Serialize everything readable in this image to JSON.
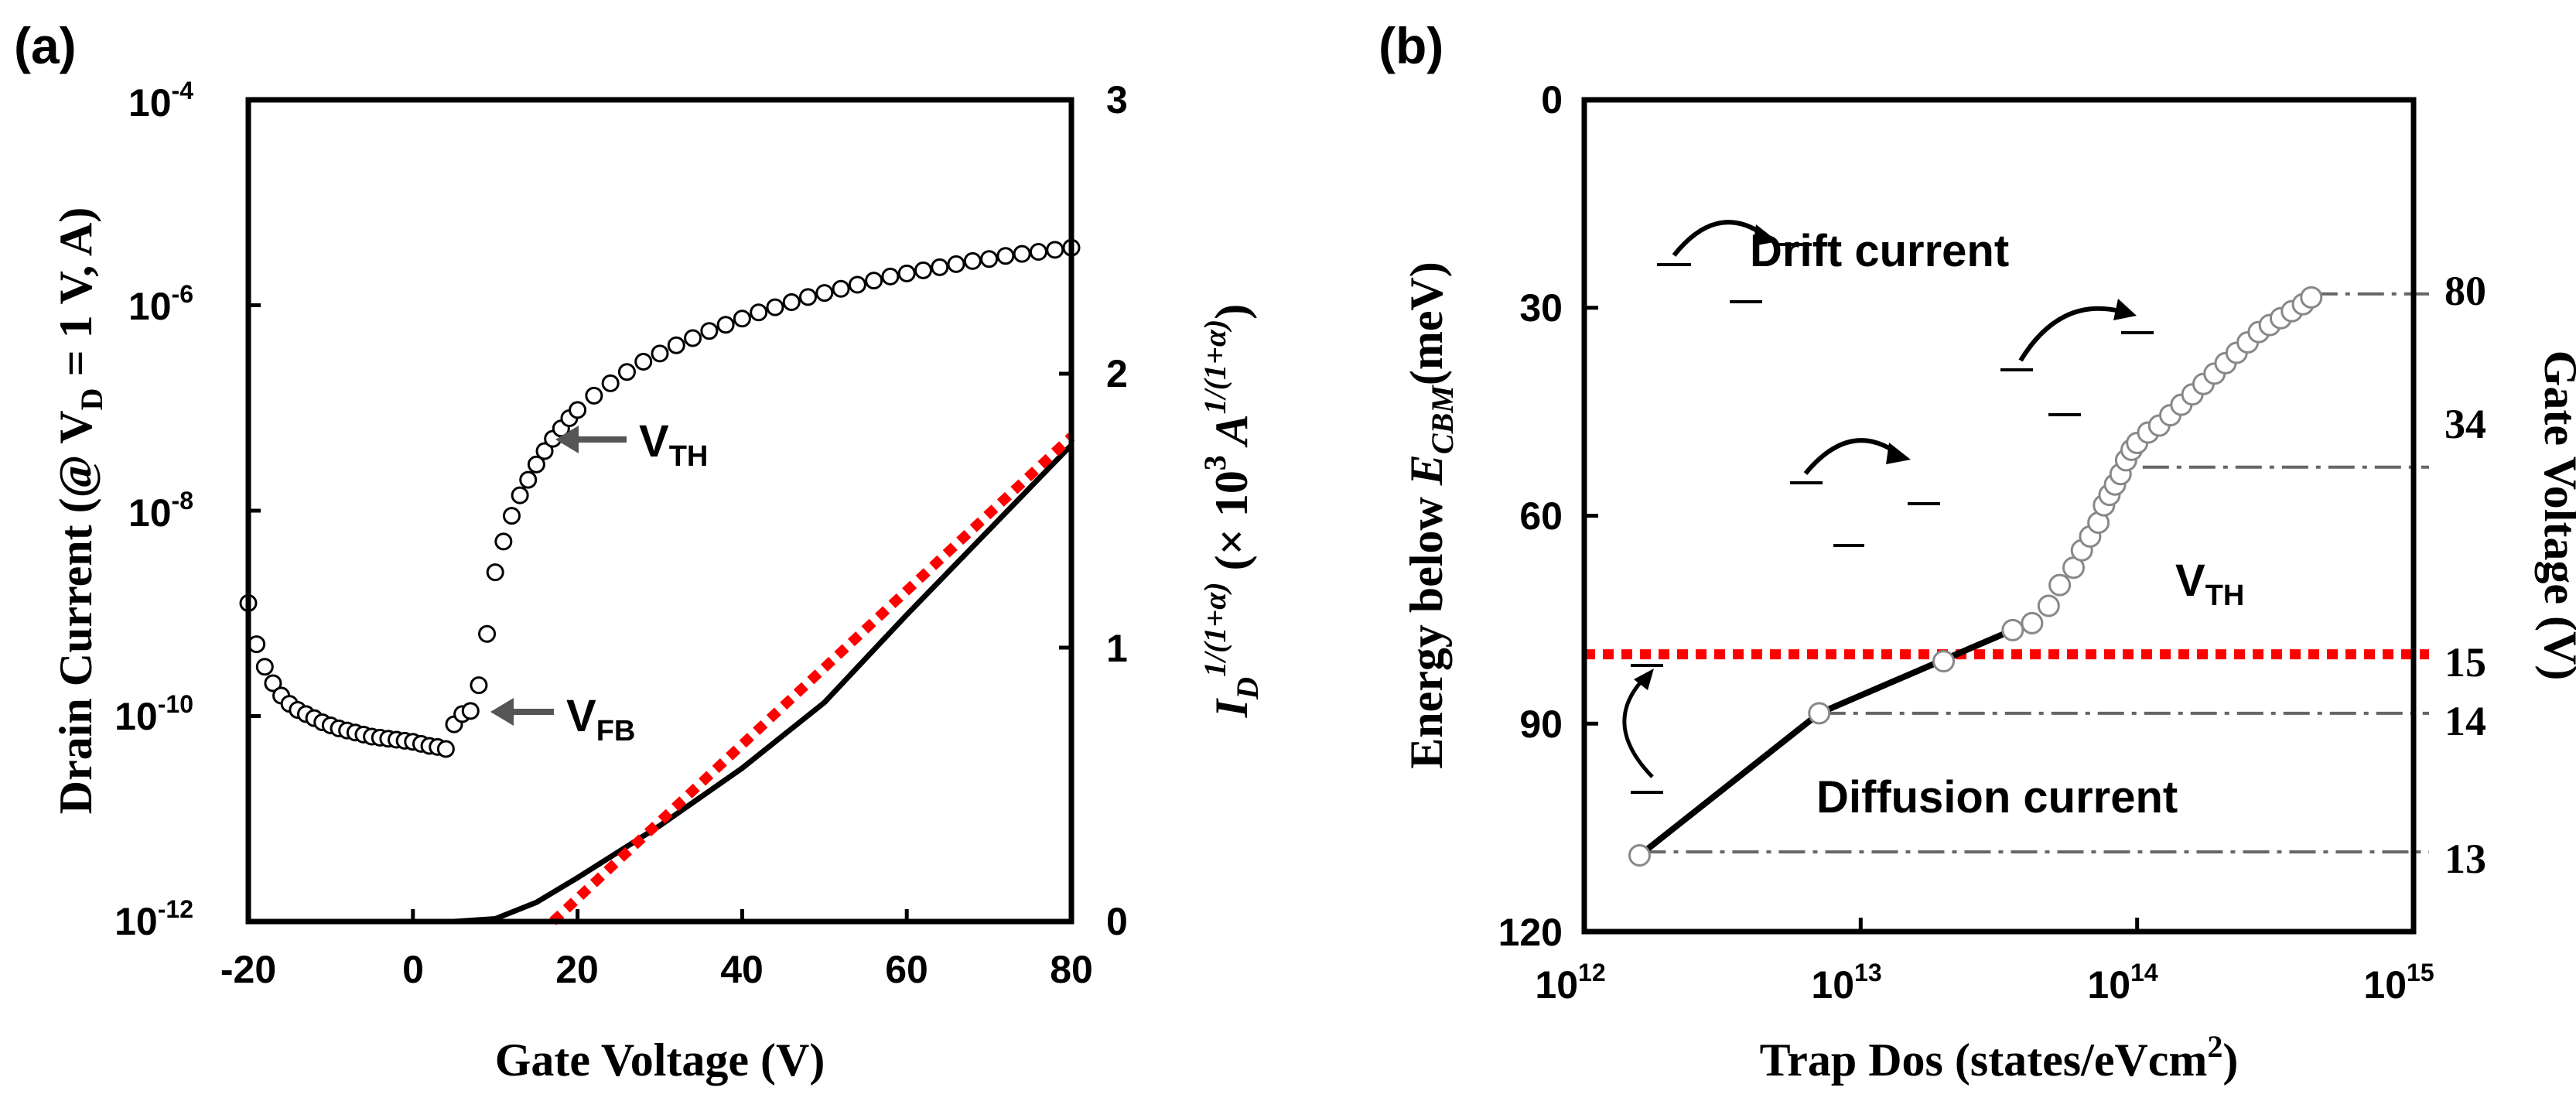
{
  "chart_data": [
    {
      "panel": "(a)",
      "type": "scatter",
      "xlabel": "Gate Voltage (V)",
      "ylabel_left": "Drain Current (@ V",
      "ylabel_left_sub": "D",
      "ylabel_left_tail": " = 1 V, A)",
      "ylabel_right_base": "I",
      "ylabel_right_sub": "D",
      "ylabel_right_sup": "1/(1+α)",
      "ylabel_right_mid": " (× 10",
      "ylabel_right_mid_sup": "3",
      "ylabel_right_tail": " A",
      "ylabel_right_tail_sup": "1/(1+α)",
      "ylabel_right_close": ")",
      "xlim": [
        -20,
        80
      ],
      "ylim_left": [
        -12,
        -4
      ],
      "ylim_right": [
        0,
        3
      ],
      "x_ticks": [
        "-20",
        "0",
        "20",
        "40",
        "60",
        "80"
      ],
      "y_left_ticks": [
        {
          "base": "10",
          "exp": "-4"
        },
        {
          "base": "10",
          "exp": "-6"
        },
        {
          "base": "10",
          "exp": "-8"
        },
        {
          "base": "10",
          "exp": "-10"
        },
        {
          "base": "10",
          "exp": "-12"
        }
      ],
      "y_right_ticks": [
        "3",
        "2",
        "1",
        "0"
      ],
      "series": [
        {
          "name": "Drain current (log scale, open circles)",
          "x": [
            -20,
            -19,
            -18,
            -17,
            -16,
            -15,
            -14,
            -13,
            -12,
            -11,
            -10,
            -9,
            -8,
            -7,
            -6,
            -5,
            -4,
            -3,
            -2,
            -1,
            0,
            1,
            2,
            3,
            4,
            5,
            6,
            7,
            8,
            9,
            10,
            11,
            12,
            13,
            14,
            15,
            16,
            17,
            18,
            19,
            20,
            22,
            24,
            26,
            28,
            30,
            32,
            34,
            36,
            38,
            40,
            42,
            44,
            46,
            48,
            50,
            52,
            54,
            56,
            58,
            60,
            62,
            64,
            66,
            68,
            70,
            72,
            74,
            76,
            78,
            80
          ],
          "log10_y": [
            -8.9,
            -9.3,
            -9.52,
            -9.68,
            -9.8,
            -9.88,
            -9.94,
            -9.98,
            -10.02,
            -10.06,
            -10.09,
            -10.12,
            -10.14,
            -10.16,
            -10.18,
            -10.2,
            -10.21,
            -10.22,
            -10.23,
            -10.24,
            -10.25,
            -10.27,
            -10.29,
            -10.3,
            -10.32,
            -10.08,
            -9.98,
            -9.95,
            -9.7,
            -9.2,
            -8.6,
            -8.3,
            -8.05,
            -7.85,
            -7.7,
            -7.55,
            -7.42,
            -7.3,
            -7.2,
            -7.1,
            -7.02,
            -6.88,
            -6.76,
            -6.65,
            -6.55,
            -6.47,
            -6.39,
            -6.32,
            -6.25,
            -6.19,
            -6.13,
            -6.07,
            -6.02,
            -5.97,
            -5.92,
            -5.88,
            -5.84,
            -5.8,
            -5.76,
            -5.72,
            -5.69,
            -5.66,
            -5.63,
            -5.6,
            -5.57,
            -5.55,
            -5.52,
            -5.5,
            -5.48,
            -5.46,
            -5.44
          ]
        },
        {
          "name": "I_D^(1/(1+α)) (right axis, black line)",
          "x": [
            -20,
            -10,
            0,
            5,
            10,
            15,
            20,
            30,
            40,
            50,
            60,
            70,
            80
          ],
          "y": [
            0,
            0,
            0,
            0,
            0.01,
            0.07,
            0.16,
            0.35,
            0.56,
            0.8,
            1.12,
            1.43,
            1.74
          ]
        },
        {
          "name": "Linear fit (red dotted)",
          "x": [
            17,
            80
          ],
          "y": [
            0,
            1.77
          ]
        }
      ],
      "annotations": [
        {
          "base": "V",
          "sub": "TH",
          "x": 8,
          "log10_y": -7.9
        },
        {
          "base": "V",
          "sub": "FB",
          "x": 8,
          "log10_y": -10.05
        }
      ]
    },
    {
      "panel": "(b)",
      "type": "scatter",
      "xlabel": "Trap Dos (states/eVcm",
      "xlabel_sup": "2",
      "xlabel_close": ")",
      "ylabel_left": "Energy  below ",
      "ylabel_left_e": "E",
      "ylabel_left_e_sub": "CBM",
      "ylabel_left_tail": "(meV)",
      "ylabel_right": "Gate Voltage (V)",
      "xscale": "log",
      "xlim_log10": [
        12,
        15
      ],
      "ylim": [
        0,
        120
      ],
      "y_inverted": true,
      "x_ticks": [
        {
          "base": "10",
          "exp": "12"
        },
        {
          "base": "10",
          "exp": "13"
        },
        {
          "base": "10",
          "exp": "14"
        },
        {
          "base": "10",
          "exp": "15"
        }
      ],
      "y_ticks": [
        "0",
        "30",
        "60",
        "90",
        "120"
      ],
      "series": [
        {
          "name": "Trap DOS (open circles)",
          "log10_x": [
            12.2,
            12.85,
            13.3,
            13.55,
            13.62,
            13.68,
            13.72,
            13.77,
            13.8,
            13.83,
            13.86,
            13.88,
            13.9,
            13.92,
            13.94,
            13.96,
            13.98,
            14.0,
            14.04,
            14.08,
            14.12,
            14.16,
            14.2,
            14.24,
            14.28,
            14.32,
            14.36,
            14.4,
            14.44,
            14.48,
            14.52,
            14.56,
            14.6,
            14.63
          ],
          "y": [
            109,
            88.5,
            81,
            76.5,
            75.5,
            73,
            70,
            67.5,
            65,
            63,
            61,
            58.5,
            57,
            55.5,
            54,
            52,
            50.5,
            49.5,
            48,
            47,
            45.5,
            44,
            42.5,
            41,
            39.5,
            38,
            36.5,
            35,
            33.5,
            32.5,
            31.5,
            30.5,
            29.5,
            28.5
          ]
        },
        {
          "name": "Fit line (black)",
          "log10_x": [
            12.2,
            12.85,
            13.55
          ],
          "y": [
            109,
            88.5,
            76.5
          ]
        }
      ],
      "threshold_energy_meV": 80,
      "right_axis_marks": [
        {
          "label": "80",
          "y": 28
        },
        {
          "label": "34",
          "y": 53
        },
        {
          "label": "15",
          "y": 80
        },
        {
          "label": "14",
          "y": 88.5
        },
        {
          "label": "13",
          "y": 108.5
        }
      ],
      "region_labels": {
        "drift": "Drift current",
        "diffusion": "Diffusion current",
        "vth_base": "V",
        "vth_sub": "TH"
      }
    }
  ]
}
